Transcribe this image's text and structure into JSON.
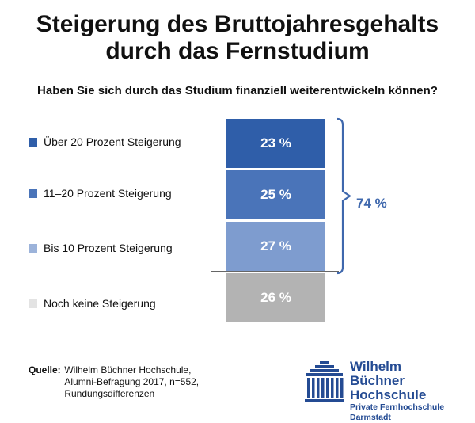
{
  "title_lines": [
    "Steigerung des Bruttojahresgehalts",
    "durch das Fernstudium"
  ],
  "subtitle": "Haben Sie sich durch das Studium finanziell weiterentwickeln können?",
  "chart_data": {
    "type": "bar",
    "stacked": true,
    "categories": [
      "Über 20 Prozent Steigerung",
      "11–20 Prozent Steigerung",
      "Bis 10 Prozent Steigerung",
      "Noch keine Steigerung"
    ],
    "values": [
      23,
      25,
      27,
      26
    ],
    "value_labels": [
      "23 %",
      "25 %",
      "27 %",
      "26 %"
    ],
    "colors": [
      "#2f5ea9",
      "#4a74b9",
      "#7e9ccf",
      "#b3b3b3"
    ],
    "legend_colors": [
      "#2f5ea9",
      "#4a74b9",
      "#9cb3da",
      "#e3e3e3"
    ],
    "bracket_total_label": "74 %",
    "bracket_color": "#3f68ad"
  },
  "source": {
    "label": "Quelle:",
    "lines": [
      "Wilhelm Büchner Hochschule,",
      "Alumni-Befragung 2017, n=552,",
      "Rundungsdifferenzen"
    ]
  },
  "logo": {
    "name_line1": "Wilhelm Büchner",
    "name_line2": "Hochschule",
    "subline": "Private Fernhochschule Darmstadt",
    "color": "#244b93"
  }
}
